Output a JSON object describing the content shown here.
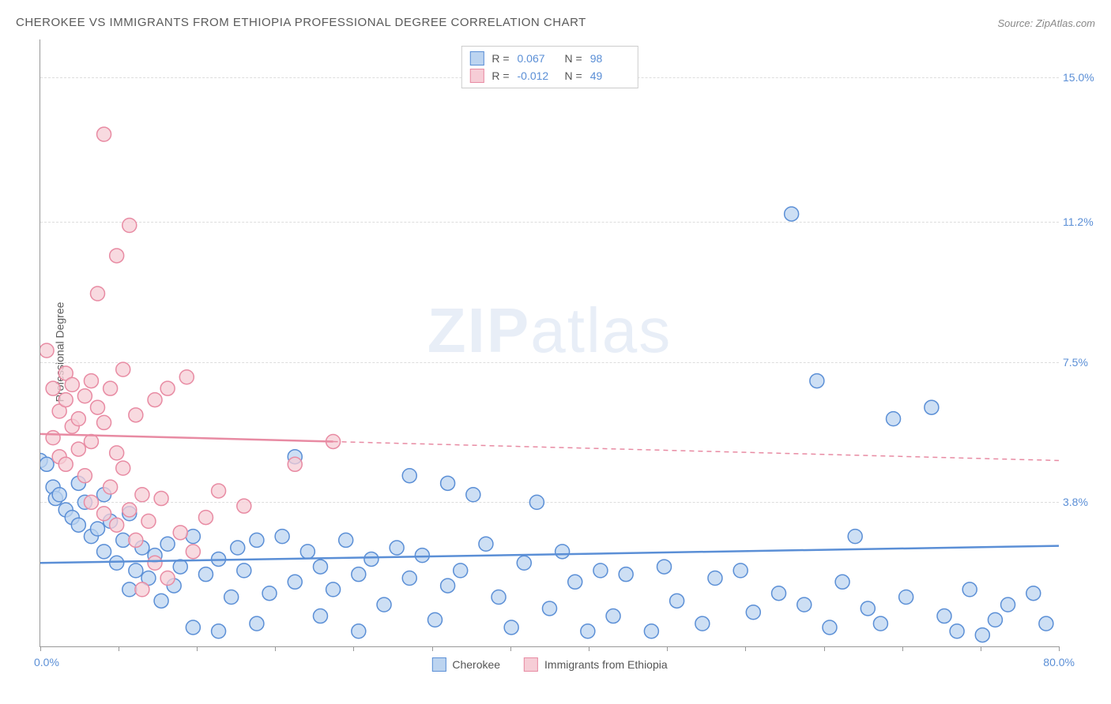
{
  "title": "CHEROKEE VS IMMIGRANTS FROM ETHIOPIA PROFESSIONAL DEGREE CORRELATION CHART",
  "source_label": "Source: ZipAtlas.com",
  "y_axis_label": "Professional Degree",
  "watermark": {
    "zip": "ZIP",
    "atlas": "atlas"
  },
  "chart": {
    "type": "scatter",
    "background_color": "#ffffff",
    "grid_color": "#dddddd",
    "axis_color": "#999999",
    "xlim": [
      0,
      80
    ],
    "ylim": [
      0,
      16
    ],
    "x_ticks": [
      0,
      6.15,
      12.3,
      18.46,
      24.6,
      30.77,
      36.92,
      43.08,
      49.23,
      55.38,
      61.54,
      67.69,
      73.85,
      80
    ],
    "y_gridlines": [
      3.8,
      7.5,
      11.2,
      15.0
    ],
    "y_tick_labels": [
      "3.8%",
      "7.5%",
      "11.2%",
      "15.0%"
    ],
    "x_min_label": "0.0%",
    "x_max_label": "80.0%",
    "marker_radius": 9,
    "marker_stroke_width": 1.5,
    "trend_line_width": 2.5,
    "trend_dash": "6,5",
    "label_fontsize": 14,
    "tick_label_color": "#5b8fd6",
    "series": [
      {
        "name": "Cherokee",
        "fill_color": "#bcd4f0",
        "stroke_color": "#5b8fd6",
        "r_value": "0.067",
        "n_value": "98",
        "trend": {
          "x1": 0,
          "y1": 2.2,
          "x2": 80,
          "y2": 2.65,
          "solid_until_x": 80
        },
        "points": [
          [
            0,
            4.9
          ],
          [
            0.5,
            4.8
          ],
          [
            1,
            4.2
          ],
          [
            1.2,
            3.9
          ],
          [
            1.5,
            4.0
          ],
          [
            2,
            3.6
          ],
          [
            2.5,
            3.4
          ],
          [
            3,
            3.2
          ],
          [
            3,
            4.3
          ],
          [
            3.5,
            3.8
          ],
          [
            4,
            2.9
          ],
          [
            4.5,
            3.1
          ],
          [
            5,
            2.5
          ],
          [
            5,
            4.0
          ],
          [
            5.5,
            3.3
          ],
          [
            6,
            2.2
          ],
          [
            6.5,
            2.8
          ],
          [
            7,
            1.5
          ],
          [
            7,
            3.5
          ],
          [
            7.5,
            2.0
          ],
          [
            8,
            2.6
          ],
          [
            8.5,
            1.8
          ],
          [
            9,
            2.4
          ],
          [
            9.5,
            1.2
          ],
          [
            10,
            2.7
          ],
          [
            10.5,
            1.6
          ],
          [
            11,
            2.1
          ],
          [
            12,
            0.5
          ],
          [
            12,
            2.9
          ],
          [
            13,
            1.9
          ],
          [
            14,
            0.4
          ],
          [
            14,
            2.3
          ],
          [
            15,
            1.3
          ],
          [
            15.5,
            2.6
          ],
          [
            16,
            2.0
          ],
          [
            17,
            0.6
          ],
          [
            17,
            2.8
          ],
          [
            18,
            1.4
          ],
          [
            19,
            2.9
          ],
          [
            20,
            1.7
          ],
          [
            20,
            5.0
          ],
          [
            21,
            2.5
          ],
          [
            22,
            0.8
          ],
          [
            22,
            2.1
          ],
          [
            23,
            1.5
          ],
          [
            24,
            2.8
          ],
          [
            25,
            0.4
          ],
          [
            25,
            1.9
          ],
          [
            26,
            2.3
          ],
          [
            27,
            1.1
          ],
          [
            28,
            2.6
          ],
          [
            29,
            4.5
          ],
          [
            29,
            1.8
          ],
          [
            30,
            2.4
          ],
          [
            31,
            0.7
          ],
          [
            32,
            4.3
          ],
          [
            32,
            1.6
          ],
          [
            33,
            2.0
          ],
          [
            34,
            4.0
          ],
          [
            35,
            2.7
          ],
          [
            36,
            1.3
          ],
          [
            37,
            0.5
          ],
          [
            38,
            2.2
          ],
          [
            39,
            3.8
          ],
          [
            40,
            1.0
          ],
          [
            41,
            2.5
          ],
          [
            42,
            1.7
          ],
          [
            43,
            0.4
          ],
          [
            44,
            2.0
          ],
          [
            45,
            0.8
          ],
          [
            46,
            1.9
          ],
          [
            48,
            0.4
          ],
          [
            49,
            2.1
          ],
          [
            50,
            1.2
          ],
          [
            52,
            0.6
          ],
          [
            53,
            1.8
          ],
          [
            55,
            2.0
          ],
          [
            56,
            0.9
          ],
          [
            58,
            1.4
          ],
          [
            59,
            11.4
          ],
          [
            60,
            1.1
          ],
          [
            61,
            7.0
          ],
          [
            62,
            0.5
          ],
          [
            63,
            1.7
          ],
          [
            64,
            2.9
          ],
          [
            65,
            1.0
          ],
          [
            66,
            0.6
          ],
          [
            67,
            6.0
          ],
          [
            68,
            1.3
          ],
          [
            70,
            6.3
          ],
          [
            71,
            0.8
          ],
          [
            72,
            0.4
          ],
          [
            73,
            1.5
          ],
          [
            74,
            0.3
          ],
          [
            75,
            0.7
          ],
          [
            76,
            1.1
          ],
          [
            78,
            1.4
          ],
          [
            79,
            0.6
          ]
        ]
      },
      {
        "name": "Immigrants from Ethiopia",
        "fill_color": "#f6cdd6",
        "stroke_color": "#e88ba3",
        "r_value": "-0.012",
        "n_value": "49",
        "trend": {
          "x1": 0,
          "y1": 5.6,
          "x2": 80,
          "y2": 4.9,
          "solid_until_x": 23
        },
        "points": [
          [
            0.5,
            7.8
          ],
          [
            1,
            6.8
          ],
          [
            1,
            5.5
          ],
          [
            1.5,
            6.2
          ],
          [
            1.5,
            5.0
          ],
          [
            2,
            6.5
          ],
          [
            2,
            7.2
          ],
          [
            2,
            4.8
          ],
          [
            2.5,
            5.8
          ],
          [
            2.5,
            6.9
          ],
          [
            3,
            6.0
          ],
          [
            3,
            5.2
          ],
          [
            3.5,
            6.6
          ],
          [
            3.5,
            4.5
          ],
          [
            4,
            7.0
          ],
          [
            4,
            5.4
          ],
          [
            4,
            3.8
          ],
          [
            4.5,
            6.3
          ],
          [
            4.5,
            9.3
          ],
          [
            5,
            5.9
          ],
          [
            5,
            3.5
          ],
          [
            5,
            13.5
          ],
          [
            5.5,
            4.2
          ],
          [
            5.5,
            6.8
          ],
          [
            6,
            5.1
          ],
          [
            6,
            3.2
          ],
          [
            6,
            10.3
          ],
          [
            6.5,
            4.7
          ],
          [
            6.5,
            7.3
          ],
          [
            7,
            3.6
          ],
          [
            7,
            11.1
          ],
          [
            7.5,
            2.8
          ],
          [
            7.5,
            6.1
          ],
          [
            8,
            4.0
          ],
          [
            8,
            1.5
          ],
          [
            8.5,
            3.3
          ],
          [
            9,
            6.5
          ],
          [
            9,
            2.2
          ],
          [
            9.5,
            3.9
          ],
          [
            10,
            6.8
          ],
          [
            10,
            1.8
          ],
          [
            11,
            3.0
          ],
          [
            11.5,
            7.1
          ],
          [
            12,
            2.5
          ],
          [
            13,
            3.4
          ],
          [
            14,
            4.1
          ],
          [
            16,
            3.7
          ],
          [
            20,
            4.8
          ],
          [
            23,
            5.4
          ]
        ]
      }
    ]
  },
  "legend_top": {
    "r_label": "R  =",
    "n_label": "N  ="
  },
  "legend_bottom": [
    {
      "label": "Cherokee",
      "fill_color": "#bcd4f0",
      "stroke_color": "#5b8fd6"
    },
    {
      "label": "Immigrants from Ethiopia",
      "fill_color": "#f6cdd6",
      "stroke_color": "#e88ba3"
    }
  ]
}
